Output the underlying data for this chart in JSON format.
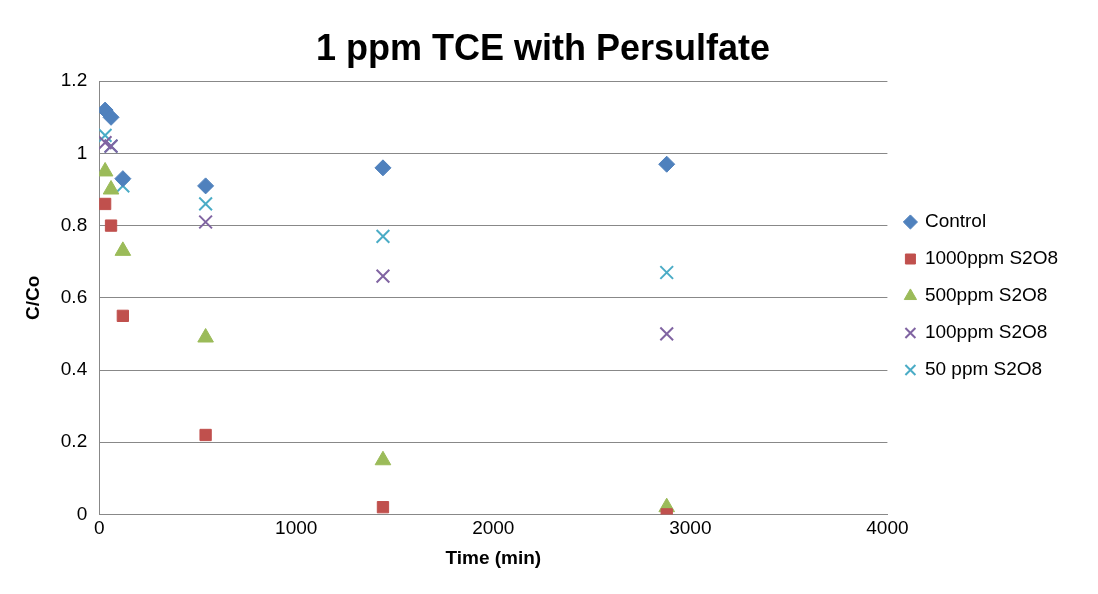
{
  "chart_data": {
    "type": "scatter",
    "title": "1 ppm TCE with Persulfate",
    "xlabel": "Time (min)",
    "ylabel": "C/Co",
    "xlim": [
      0,
      4000
    ],
    "xticks": [
      0,
      1000,
      2000,
      3000,
      4000
    ],
    "ylim": [
      0,
      1.2
    ],
    "yticks": [
      0,
      0.2,
      0.4,
      0.6,
      0.8,
      1,
      1.2
    ],
    "grid": "y",
    "legend": "right",
    "series": [
      {
        "name": "Control",
        "color": "#4f81bd",
        "marker": "diamond",
        "x": [
          30,
          60,
          120,
          540,
          1440,
          2880
        ],
        "values": [
          1.12,
          1.1,
          0.93,
          0.91,
          0.96,
          0.97
        ]
      },
      {
        "name": "1000ppm S2O8",
        "color": "#c0504d",
        "marker": "square",
        "x": [
          30,
          60,
          120,
          540,
          1440,
          2880
        ],
        "values": [
          0.86,
          0.8,
          0.55,
          0.22,
          0.02,
          0
        ]
      },
      {
        "name": "500ppm S2O8",
        "color": "#9bbb59",
        "marker": "triangle",
        "x": [
          30,
          60,
          120,
          540,
          1440,
          2880
        ],
        "values": [
          0.95,
          0.9,
          0.73,
          0.49,
          0.15,
          0.02
        ]
      },
      {
        "name": "100ppm S2O8",
        "color": "#8064a2",
        "marker": "cross",
        "x": [
          30,
          60,
          120,
          540,
          1440,
          2880
        ],
        "values": [
          1.03,
          1.02,
          null,
          0.81,
          0.66,
          0.5
        ]
      },
      {
        "name": "50 ppm S2O8",
        "color": "#4bacc6",
        "marker": "cross",
        "x": [
          30,
          60,
          120,
          540,
          1440,
          2880
        ],
        "values": [
          1.05,
          1.02,
          0.91,
          0.86,
          0.77,
          0.67
        ]
      }
    ]
  }
}
